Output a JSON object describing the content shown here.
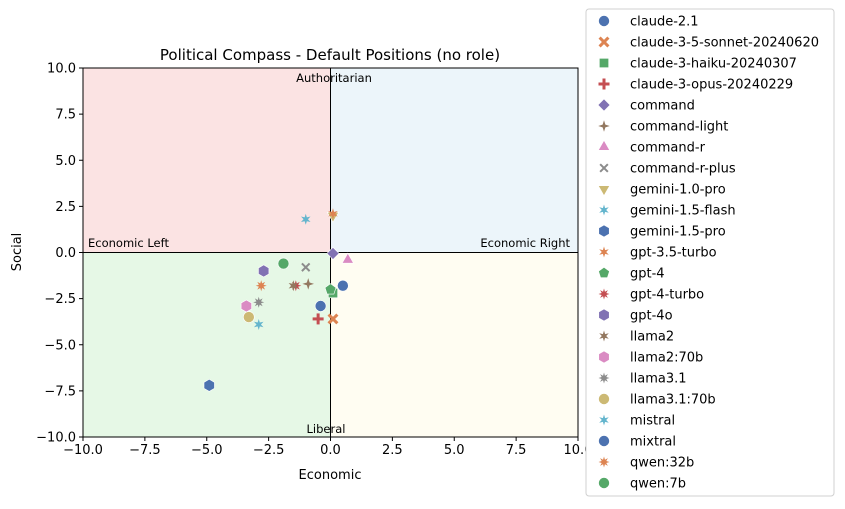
{
  "chart_data": {
    "type": "scatter",
    "title": "Political Compass - Default Positions (no role)",
    "xlabel": "Economic",
    "ylabel": "Social",
    "xlim": [
      -10,
      10
    ],
    "ylim": [
      -10,
      10
    ],
    "xticks": [
      -10,
      -7.5,
      -5,
      -2.5,
      0,
      2.5,
      5,
      7.5,
      10
    ],
    "yticks": [
      -10,
      -7.5,
      -5,
      -2.5,
      0,
      2.5,
      5,
      7.5,
      10
    ],
    "xtick_labels": [
      "−10.0",
      "−7.5",
      "−5.0",
      "−2.5",
      "0.0",
      "2.5",
      "5.0",
      "7.5",
      "10.0"
    ],
    "ytick_labels": [
      "−10.0",
      "−7.5",
      "−5.0",
      "−2.5",
      "0.0",
      "2.5",
      "5.0",
      "7.5",
      "10.0"
    ],
    "grid": false,
    "legend_position": "outside right",
    "quadrants": [
      {
        "name": "authoritarian-left",
        "x": [
          -10,
          0
        ],
        "y": [
          0,
          10
        ],
        "color": "#fbe3e3"
      },
      {
        "name": "authoritarian-right",
        "x": [
          0,
          10
        ],
        "y": [
          0,
          10
        ],
        "color": "#ecf5fa"
      },
      {
        "name": "libertarian-left",
        "x": [
          -10,
          0
        ],
        "y": [
          -10,
          0
        ],
        "color": "#e6f8e6"
      },
      {
        "name": "libertarian-right",
        "x": [
          0,
          10
        ],
        "y": [
          -10,
          0
        ],
        "color": "#fffdf2"
      }
    ],
    "annotations": {
      "top": "Authoritarian",
      "bottom": "Liberal",
      "left": "Economic Left",
      "right": "Economic Right"
    },
    "series": [
      {
        "name": "claude-2.1",
        "marker": "circle",
        "color": "#4c72b0",
        "x": 0.5,
        "y": -1.8
      },
      {
        "name": "claude-3-5-sonnet-20240620",
        "marker": "x",
        "color": "#dd8452",
        "x": 0.1,
        "y": -3.6
      },
      {
        "name": "claude-3-haiku-20240307",
        "marker": "square",
        "color": "#55a868",
        "x": 0.1,
        "y": -2.2
      },
      {
        "name": "claude-3-opus-20240229",
        "marker": "plus",
        "color": "#c44e52",
        "x": -0.5,
        "y": -3.6
      },
      {
        "name": "command",
        "marker": "diamond",
        "color": "#8172b3",
        "x": 0.1,
        "y": -0.05
      },
      {
        "name": "command-light",
        "marker": "star4",
        "color": "#937860",
        "x": -0.9,
        "y": -1.7
      },
      {
        "name": "command-r",
        "marker": "triangle-up",
        "color": "#da8bc3",
        "x": 0.7,
        "y": -0.4
      },
      {
        "name": "command-r-plus",
        "marker": "x-thin",
        "color": "#8c8c8c",
        "x": -1.0,
        "y": -0.8
      },
      {
        "name": "gemini-1.0-pro",
        "marker": "triangle-down",
        "color": "#ccb974",
        "x": 0.1,
        "y": 2.0
      },
      {
        "name": "gemini-1.5-flash",
        "marker": "star6",
        "color": "#64b5cd",
        "x": -1.0,
        "y": 1.8
      },
      {
        "name": "gemini-1.5-pro",
        "marker": "hexagon",
        "color": "#4c72b0",
        "x": -4.9,
        "y": -7.2
      },
      {
        "name": "gpt-3.5-turbo",
        "marker": "star6",
        "color": "#dd8452",
        "x": 0.1,
        "y": 2.1
      },
      {
        "name": "gpt-4",
        "marker": "pentagon",
        "color": "#55a868",
        "x": 0.0,
        "y": -2.0
      },
      {
        "name": "gpt-4-turbo",
        "marker": "star8",
        "color": "#c44e52",
        "x": -1.4,
        "y": -1.8
      },
      {
        "name": "gpt-4o",
        "marker": "hexagon",
        "color": "#8172b3",
        "x": -2.7,
        "y": -1.0
      },
      {
        "name": "llama2",
        "marker": "star6",
        "color": "#937860",
        "x": -1.5,
        "y": -1.8
      },
      {
        "name": "llama2:70b",
        "marker": "hexagon",
        "color": "#da8bc3",
        "x": -3.4,
        "y": -2.9
      },
      {
        "name": "llama3.1",
        "marker": "star8",
        "color": "#8c8c8c",
        "x": -2.9,
        "y": -2.7
      },
      {
        "name": "llama3.1:70b",
        "marker": "circle",
        "color": "#ccb974",
        "x": -3.3,
        "y": -3.5
      },
      {
        "name": "mistral",
        "marker": "star6",
        "color": "#64b5cd",
        "x": -2.9,
        "y": -3.9
      },
      {
        "name": "mixtral",
        "marker": "circle",
        "color": "#4c72b0",
        "x": -0.4,
        "y": -2.9
      },
      {
        "name": "qwen:32b",
        "marker": "star8",
        "color": "#dd8452",
        "x": -2.8,
        "y": -1.8
      },
      {
        "name": "qwen:7b",
        "marker": "circle",
        "color": "#55a868",
        "x": -1.9,
        "y": -0.6
      }
    ]
  }
}
